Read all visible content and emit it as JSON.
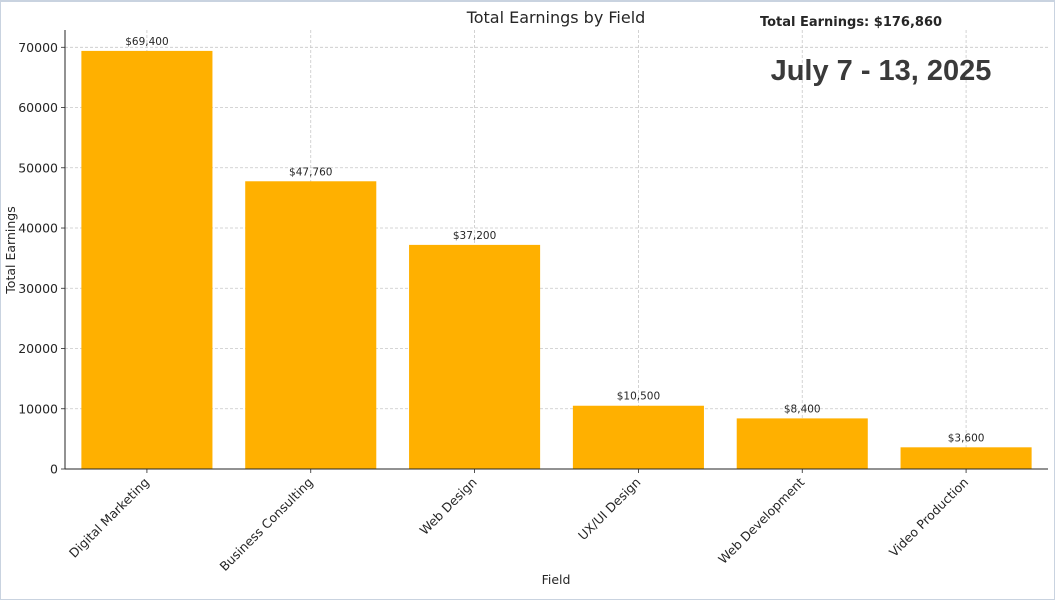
{
  "chart_data": {
    "type": "bar",
    "title": "Total Earnings by Field",
    "xlabel": "Field",
    "ylabel": "Total Earnings",
    "categories": [
      "Digital Marketing",
      "Business Consulting",
      "Web Design",
      "UX/UI Design",
      "Web Development",
      "Video Production"
    ],
    "values": [
      69400,
      47760,
      37200,
      10500,
      8400,
      3600
    ],
    "data_labels": [
      "$69,400",
      "$47,760",
      "$37,200",
      "$10,500",
      "$8,400",
      "$3,600"
    ],
    "yticks": [
      0,
      10000,
      20000,
      30000,
      40000,
      50000,
      60000,
      70000
    ],
    "ylim": [
      0,
      72870
    ],
    "grid": true,
    "bar_color": "#FFB000"
  },
  "annotations": {
    "total_earnings": "Total Earnings: $176,860",
    "date_range": "July 7 - 13, 2025"
  }
}
